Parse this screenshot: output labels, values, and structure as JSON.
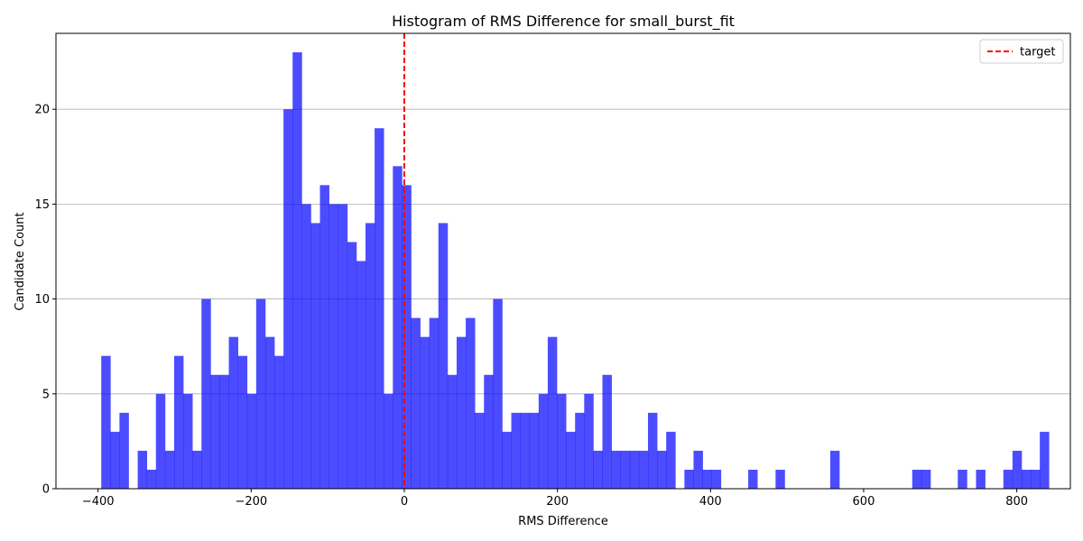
{
  "chart_data": {
    "type": "bar",
    "title": "Histogram of RMS Difference for small_burst_fit",
    "xlabel": "RMS Difference",
    "ylabel": "Candidate Count",
    "xlim": [
      -455,
      870
    ],
    "ylim": [
      0,
      24
    ],
    "xticks": [
      -400,
      -200,
      0,
      200,
      400,
      600,
      800
    ],
    "xtick_labels": [
      "−400",
      "−200",
      "0",
      "200",
      "400",
      "600",
      "800"
    ],
    "yticks": [
      0,
      5,
      10,
      15,
      20
    ],
    "grid": "horizontal",
    "legend_placement": "top-right",
    "bar_color": "#0000ff",
    "bar_alpha": 0.7,
    "bin_start": -395.83,
    "bin_width": 11.902,
    "bin_counts": [
      7,
      3,
      4,
      0,
      2,
      1,
      5,
      2,
      7,
      5,
      2,
      10,
      6,
      6,
      8,
      7,
      5,
      10,
      8,
      7,
      20,
      23,
      15,
      14,
      16,
      15,
      15,
      13,
      12,
      14,
      19,
      5,
      17,
      16,
      9,
      8,
      9,
      14,
      6,
      8,
      9,
      4,
      6,
      10,
      3,
      4,
      4,
      4,
      5,
      8,
      5,
      3,
      4,
      5,
      2,
      6,
      2,
      2,
      2,
      2,
      4,
      2,
      3,
      0,
      1,
      2,
      1,
      1,
      0,
      0,
      0,
      1,
      0,
      0,
      1,
      0,
      0,
      0,
      0,
      0,
      2,
      0,
      0,
      0,
      0,
      0,
      0,
      0,
      0,
      1,
      1,
      0,
      0,
      0,
      1,
      0,
      1,
      0,
      0,
      1,
      2,
      1,
      1,
      3
    ],
    "series": [
      {
        "name": "target",
        "type": "vline",
        "x": 0,
        "color": "#ff0000",
        "style": "dashed"
      }
    ]
  }
}
